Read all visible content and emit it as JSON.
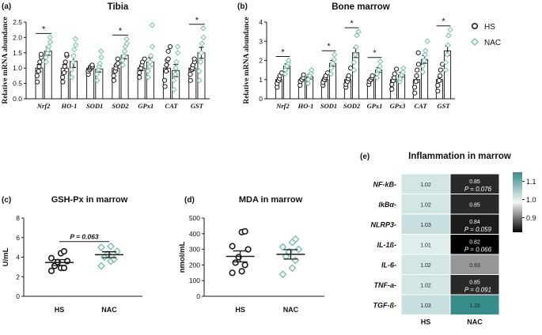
{
  "colors": {
    "hs": "#1a1a1a",
    "nac": "#79bfae",
    "axis": "#1a1a1a",
    "bar_edge": "#222222"
  },
  "legend": {
    "hs": "HS",
    "nac": "NAC"
  },
  "chart_data": [
    {
      "id": "tibia",
      "type": "bar",
      "panel_label": "(a)",
      "title": "Tibia",
      "ylabel": "Relative mRNA abundance",
      "ylim": [
        0,
        2.5
      ],
      "yticks": [
        0,
        0.5,
        1.0,
        1.5,
        2.0,
        2.5
      ],
      "ytick_labels": [
        "0.0",
        "0.5",
        "1.0",
        "1.5",
        "2.0",
        "2.5"
      ],
      "categories": [
        "Nrf2",
        "HO-1",
        "SOD1",
        "SOD2",
        "GPx1",
        "CAT",
        "GST"
      ],
      "series": [
        {
          "name": "HS",
          "values": [
            1.0,
            1.0,
            1.0,
            1.0,
            1.0,
            1.0,
            1.0
          ],
          "errors": [
            0.12,
            0.12,
            0.06,
            0.09,
            0.08,
            0.12,
            0.08
          ],
          "points": [
            [
              0.55,
              0.75,
              0.9,
              1.05,
              1.2,
              1.35,
              1.45
            ],
            [
              0.55,
              0.7,
              0.85,
              1.05,
              1.2,
              1.4,
              1.45
            ],
            [
              0.8,
              0.9,
              0.95,
              1.0,
              1.05,
              1.05,
              1.1
            ],
            [
              0.6,
              0.75,
              0.9,
              1.0,
              1.1,
              1.15,
              1.3
            ],
            [
              0.7,
              0.85,
              1.0,
              1.1,
              1.2,
              1.3
            ],
            [
              0.4,
              0.6,
              0.9,
              1.1,
              1.25,
              1.3,
              1.55,
              1.7
            ],
            [
              0.6,
              0.8,
              0.95,
              1.0,
              1.1,
              1.2,
              1.3
            ]
          ]
        },
        {
          "name": "NAC",
          "values": [
            1.55,
            1.22,
            0.97,
            1.42,
            1.2,
            0.92,
            1.5
          ],
          "errors": [
            0.13,
            0.2,
            0.1,
            0.12,
            0.14,
            0.2,
            0.18
          ],
          "points": [
            [
              1.2,
              1.35,
              1.5,
              1.6,
              1.7,
              1.85,
              2.0
            ],
            [
              0.7,
              0.95,
              1.2,
              1.4,
              1.6,
              1.75,
              1.95
            ],
            [
              0.6,
              0.8,
              0.95,
              1.05,
              1.15,
              1.35,
              1.55
            ],
            [
              1.1,
              1.25,
              1.4,
              1.55,
              1.7,
              1.8,
              1.95
            ],
            [
              0.7,
              0.9,
              1.05,
              1.2,
              1.4,
              1.7,
              2.4
            ],
            [
              0.3,
              0.6,
              0.8,
              1.0,
              1.2,
              1.5,
              1.7
            ],
            [
              0.6,
              0.9,
              1.2,
              1.5,
              1.8,
              2.0,
              2.3
            ]
          ]
        }
      ],
      "significance": [
        "*",
        "",
        "",
        "*",
        "",
        "",
        "*"
      ]
    },
    {
      "id": "marrow",
      "type": "bar",
      "panel_label": "(b)",
      "title": "Bone marrow",
      "ylabel": "Relative mRNA abundance",
      "ylim": [
        0,
        4
      ],
      "yticks": [
        0,
        1,
        2,
        3,
        4
      ],
      "ytick_labels": [
        "0",
        "1",
        "2",
        "3",
        "4"
      ],
      "categories": [
        "Nrf2",
        "HO-1",
        "SOD1",
        "SOD2",
        "GPx1",
        "GPx3",
        "CAT",
        "GST"
      ],
      "series": [
        {
          "name": "HS",
          "values": [
            1.0,
            1.0,
            1.0,
            1.0,
            1.0,
            1.0,
            1.0,
            1.0
          ],
          "errors": [
            0.1,
            0.08,
            0.1,
            0.12,
            0.08,
            0.12,
            0.15,
            0.12
          ],
          "points": [
            [
              0.6,
              0.8,
              0.95,
              1.05,
              1.2,
              1.35
            ],
            [
              0.7,
              0.9,
              1.0,
              1.1,
              1.25
            ],
            [
              0.7,
              0.85,
              1.0,
              1.1,
              1.2,
              1.35
            ],
            [
              0.6,
              0.75,
              0.9,
              1.05,
              1.2,
              1.6
            ],
            [
              0.75,
              0.9,
              1.0,
              1.1,
              1.2
            ],
            [
              0.5,
              0.75,
              0.95,
              1.1,
              1.3,
              1.55
            ],
            [
              0.3,
              0.6,
              0.9,
              1.2,
              1.5,
              1.8,
              2.4
            ],
            [
              0.4,
              0.7,
              0.95,
              1.2,
              1.5,
              1.8
            ]
          ]
        },
        {
          "name": "NAC",
          "values": [
            1.7,
            1.15,
            1.85,
            2.4,
            1.5,
            1.25,
            2.05,
            2.5
          ],
          "errors": [
            0.12,
            0.12,
            0.15,
            0.25,
            0.12,
            0.12,
            0.2,
            0.25
          ],
          "points": [
            [
              1.3,
              1.5,
              1.7,
              1.85,
              2.0
            ],
            [
              0.8,
              1.0,
              1.2,
              1.35,
              1.5
            ],
            [
              1.3,
              1.6,
              1.85,
              2.05,
              2.3
            ],
            [
              1.5,
              1.9,
              2.3,
              2.7,
              3.3,
              3.5
            ],
            [
              1.1,
              1.3,
              1.5,
              1.7,
              1.95
            ],
            [
              0.9,
              1.05,
              1.25,
              1.4,
              1.6
            ],
            [
              1.4,
              1.7,
              2.0,
              2.3,
              2.5,
              3.0
            ],
            [
              1.5,
              1.9,
              2.3,
              2.8,
              3.3,
              3.6
            ]
          ]
        }
      ],
      "significance": [
        "*",
        "",
        "*",
        "*",
        "*",
        "",
        "",
        ""
      ],
      "significance_gst": "*"
    },
    {
      "id": "gshpx",
      "type": "scatter",
      "panel_label": "(c)",
      "title": "GSH-Px in marrow",
      "ylabel": "U/mL",
      "ylim": [
        0,
        8
      ],
      "yticks": [
        0,
        2,
        4,
        6,
        8
      ],
      "ytick_labels": [
        "0",
        "2",
        "4",
        "6",
        "8"
      ],
      "categories": [
        "HS",
        "NAC"
      ],
      "series": [
        {
          "name": "HS",
          "mean": 3.45,
          "sem": 0.3,
          "points": [
            2.6,
            2.9,
            2.9,
            3.1,
            3.5,
            3.6,
            3.9,
            4.4,
            4.6
          ]
        },
        {
          "name": "NAC",
          "mean": 4.25,
          "sem": 0.3,
          "points": [
            3.1,
            3.6,
            3.8,
            4.0,
            4.3,
            4.6,
            5.0,
            5.1
          ]
        }
      ],
      "annotation": "P = 0.063"
    },
    {
      "id": "mda",
      "type": "scatter",
      "panel_label": "(d)",
      "title": "MDA in marrow",
      "ylabel": "nmol/mL",
      "ylim": [
        0,
        500
      ],
      "yticks": [
        0,
        100,
        200,
        300,
        400,
        500
      ],
      "ytick_labels": [
        "0",
        "100",
        "200",
        "300",
        "400",
        "500"
      ],
      "categories": [
        "HS",
        "NAC"
      ],
      "series": [
        {
          "name": "HS",
          "mean": 255,
          "sem": 35,
          "points": [
            150,
            160,
            200,
            215,
            250,
            300,
            320,
            410,
            415
          ]
        },
        {
          "name": "NAC",
          "mean": 268,
          "sem": 30,
          "points": [
            140,
            180,
            230,
            255,
            285,
            300,
            315,
            345,
            365
          ]
        }
      ]
    },
    {
      "id": "heatmap",
      "type": "heatmap",
      "panel_label": "(e)",
      "title": "Inflammation in marrow",
      "rows": [
        "NF-kB",
        "IkBα",
        "NLRP3",
        "IL-1ß",
        "IL-6",
        "TNF-a",
        "TGF-ß"
      ],
      "columns": [
        "HS",
        "NAC"
      ],
      "values": [
        [
          1.02,
          0.85
        ],
        [
          1.02,
          0.85
        ],
        [
          1.03,
          0.84
        ],
        [
          1.01,
          0.82
        ],
        [
          1.02,
          0.93
        ],
        [
          1.02,
          0.85
        ],
        [
          1.03,
          1.15
        ]
      ],
      "labels": [
        [
          "1.02",
          "0.85"
        ],
        [
          "1.02",
          "0.85"
        ],
        [
          "1.03",
          "0.84"
        ],
        [
          "1.01",
          "0.82"
        ],
        [
          "1.02",
          "0.93"
        ],
        [
          "1.02",
          "0.85"
        ],
        [
          "1.03",
          "1.15"
        ]
      ],
      "pvalues": [
        [
          "",
          "P = 0.076"
        ],
        [
          "",
          ""
        ],
        [
          "",
          "P = 0.059"
        ],
        [
          "",
          "P = 0.066"
        ],
        [
          "",
          ""
        ],
        [
          "",
          "P = 0.091"
        ],
        [
          "",
          ""
        ]
      ],
      "colorbar": {
        "min": 0.82,
        "max": 1.15,
        "ticks": [
          1.1,
          1.0,
          0.9
        ],
        "tick_labels": [
          "1.1",
          "1.0",
          "0.9"
        ]
      }
    }
  ]
}
